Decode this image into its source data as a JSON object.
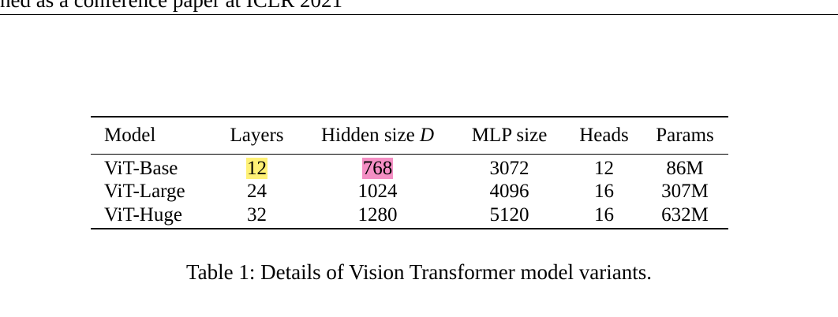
{
  "header": {
    "running_head": "ned as a conference paper at ICLR 2021"
  },
  "table": {
    "headers": {
      "model": "Model",
      "layers": "Layers",
      "hidden_prefix": "Hidden size ",
      "hidden_var": "D",
      "mlp": "MLP size",
      "heads": "Heads",
      "params": "Params"
    },
    "rows": [
      {
        "model": "ViT-Base",
        "layers": "12",
        "hidden": "768",
        "mlp": "3072",
        "heads": "12",
        "params": "86M"
      },
      {
        "model": "ViT-Large",
        "layers": "24",
        "hidden": "1024",
        "mlp": "4096",
        "heads": "16",
        "params": "307M"
      },
      {
        "model": "ViT-Huge",
        "layers": "32",
        "hidden": "1280",
        "mlp": "5120",
        "heads": "16",
        "params": "632M"
      }
    ],
    "highlights": {
      "layers_color": "#fff176",
      "hidden_color": "#f48fc4"
    }
  },
  "caption": {
    "text": "Table 1: Details of Vision Transformer model variants."
  }
}
